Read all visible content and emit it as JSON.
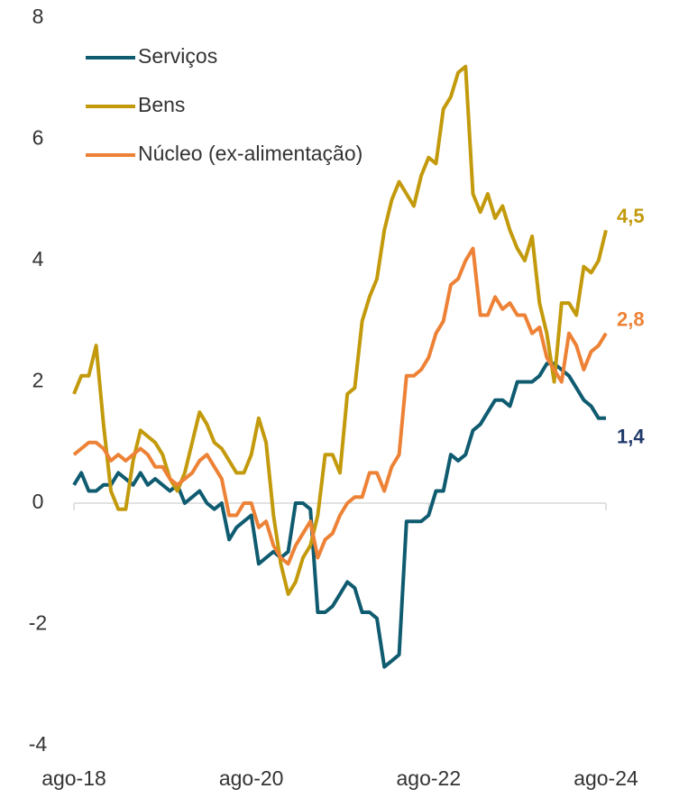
{
  "chart_data": {
    "type": "line",
    "categories": [
      "ago-18",
      null,
      null,
      null,
      null,
      null,
      null,
      null,
      null,
      null,
      null,
      null,
      null,
      null,
      null,
      null,
      null,
      null,
      null,
      null,
      null,
      null,
      null,
      null,
      "ago-20",
      null,
      null,
      null,
      null,
      null,
      null,
      null,
      null,
      null,
      null,
      null,
      null,
      null,
      null,
      null,
      null,
      null,
      null,
      null,
      null,
      null,
      null,
      null,
      "ago-22",
      null,
      null,
      null,
      null,
      null,
      null,
      null,
      null,
      null,
      null,
      null,
      null,
      null,
      null,
      null,
      null,
      null,
      null,
      null,
      null,
      null,
      null,
      null,
      "ago-24"
    ],
    "series": [
      {
        "name": "Serviços",
        "color": "#0f5b70",
        "label_color": "#1f3a6b",
        "values": [
          0.3,
          0.5,
          0.2,
          0.2,
          0.3,
          0.3,
          0.5,
          0.4,
          0.3,
          0.5,
          0.3,
          0.4,
          0.3,
          0.2,
          0.3,
          0.0,
          0.1,
          0.2,
          0.0,
          -0.1,
          0.0,
          -0.6,
          -0.4,
          -0.3,
          -0.2,
          -1.0,
          -0.9,
          -0.8,
          -0.9,
          -0.8,
          0.0,
          0.0,
          -0.1,
          -1.8,
          -1.8,
          -1.7,
          -1.5,
          -1.3,
          -1.4,
          -1.8,
          -1.8,
          -1.9,
          -2.7,
          -2.6,
          -2.5,
          -0.3,
          -0.3,
          -0.3,
          -0.2,
          0.2,
          0.2,
          0.8,
          0.7,
          0.8,
          1.2,
          1.3,
          1.5,
          1.7,
          1.7,
          1.6,
          2.0,
          2.0,
          2.0,
          2.1,
          2.3,
          2.3,
          2.2,
          2.1,
          1.9,
          1.7,
          1.6,
          1.4,
          1.4
        ],
        "value_labels": [
          null,
          null,
          null,
          null,
          null,
          null,
          null,
          null,
          null,
          null,
          null,
          null,
          null,
          null,
          null,
          null,
          null,
          null,
          null,
          null,
          null,
          null,
          null,
          null,
          null,
          null,
          null,
          null,
          null,
          null,
          null,
          null,
          null,
          null,
          null,
          null,
          null,
          null,
          null,
          null,
          null,
          null,
          null,
          null,
          null,
          null,
          null,
          null,
          null,
          null,
          null,
          null,
          null,
          null,
          null,
          null,
          null,
          null,
          null,
          null,
          null,
          null,
          null,
          null,
          null,
          null,
          null,
          null,
          null,
          null,
          null,
          null,
          "1,4"
        ]
      },
      {
        "name": "Bens",
        "color": "#c39a0c",
        "label_color": "#c39a0c",
        "values": [
          1.8,
          2.1,
          2.1,
          2.6,
          1.3,
          0.2,
          -0.1,
          -0.1,
          0.7,
          1.2,
          1.1,
          1.0,
          0.8,
          0.4,
          0.2,
          0.5,
          1.0,
          1.5,
          1.3,
          1.0,
          0.9,
          0.7,
          0.5,
          0.5,
          0.8,
          1.4,
          1.0,
          -0.2,
          -1.0,
          -1.5,
          -1.3,
          -0.9,
          -0.7,
          -0.2,
          0.8,
          0.8,
          0.5,
          1.8,
          1.9,
          3.0,
          3.4,
          3.7,
          4.5,
          5.0,
          5.3,
          5.1,
          4.9,
          5.4,
          5.7,
          5.6,
          6.5,
          6.7,
          7.1,
          7.2,
          5.1,
          4.8,
          5.1,
          4.7,
          4.9,
          4.5,
          4.2,
          4.0,
          4.4,
          3.3,
          2.8,
          2.0,
          3.3,
          3.3,
          3.1,
          3.9,
          3.8,
          4.0,
          4.5
        ],
        "value_labels": [
          null,
          null,
          null,
          null,
          null,
          null,
          null,
          null,
          null,
          null,
          null,
          null,
          null,
          null,
          null,
          null,
          null,
          null,
          null,
          null,
          null,
          null,
          null,
          null,
          null,
          null,
          null,
          null,
          null,
          null,
          null,
          null,
          null,
          null,
          null,
          null,
          null,
          null,
          null,
          null,
          null,
          null,
          null,
          null,
          null,
          null,
          null,
          null,
          null,
          null,
          null,
          null,
          null,
          null,
          null,
          null,
          null,
          null,
          null,
          null,
          null,
          null,
          null,
          null,
          null,
          null,
          null,
          null,
          null,
          null,
          null,
          null,
          "4,5"
        ]
      },
      {
        "name": "Núcleo (ex-alimentação)",
        "color": "#ed8236",
        "label_color": "#ed8236",
        "values": [
          0.8,
          0.9,
          1.0,
          1.0,
          0.9,
          0.7,
          0.8,
          0.7,
          0.8,
          0.9,
          0.8,
          0.6,
          0.6,
          0.4,
          0.3,
          0.4,
          0.5,
          0.7,
          0.8,
          0.6,
          0.4,
          -0.2,
          -0.2,
          0.0,
          0.0,
          -0.4,
          -0.3,
          -0.7,
          -0.9,
          -1.0,
          -0.7,
          -0.5,
          -0.3,
          -0.9,
          -0.6,
          -0.5,
          -0.2,
          0.0,
          0.1,
          0.1,
          0.5,
          0.5,
          0.2,
          0.6,
          0.8,
          2.1,
          2.1,
          2.2,
          2.4,
          2.8,
          3.0,
          3.6,
          3.7,
          4.0,
          4.2,
          3.1,
          3.1,
          3.4,
          3.2,
          3.3,
          3.1,
          3.1,
          2.8,
          2.9,
          2.4,
          2.2,
          2.0,
          2.8,
          2.6,
          2.2,
          2.5,
          2.6,
          2.8
        ],
        "value_labels": [
          null,
          null,
          null,
          null,
          null,
          null,
          null,
          null,
          null,
          null,
          null,
          null,
          null,
          null,
          null,
          null,
          null,
          null,
          null,
          null,
          null,
          null,
          null,
          null,
          null,
          null,
          null,
          null,
          null,
          null,
          null,
          null,
          null,
          null,
          null,
          null,
          null,
          null,
          null,
          null,
          null,
          null,
          null,
          null,
          null,
          null,
          null,
          null,
          null,
          null,
          null,
          null,
          null,
          null,
          null,
          null,
          null,
          null,
          null,
          null,
          null,
          null,
          null,
          null,
          null,
          null,
          null,
          null,
          null,
          null,
          null,
          null,
          "2,8"
        ]
      }
    ],
    "ylim": [
      -4,
      8
    ],
    "yticks": [
      8,
      6,
      4,
      2,
      0,
      -2,
      -4
    ],
    "grid": false,
    "legend": "top-left"
  }
}
